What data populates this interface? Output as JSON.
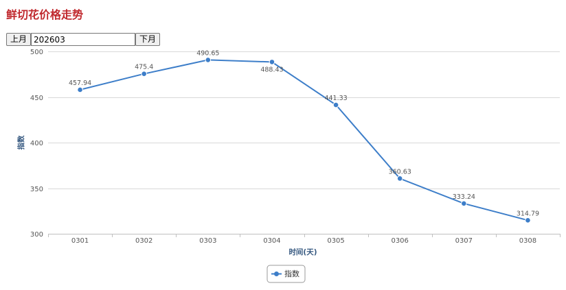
{
  "page": {
    "title": "鲜切花价格走势"
  },
  "month_nav": {
    "prev_label": "上月",
    "month_value": "202603",
    "next_label": "下月"
  },
  "colors": {
    "title": "#c0282d",
    "series": "#3d7ec9",
    "grid": "#d8d8d8",
    "axis_title": "#34577f"
  },
  "chart_data": {
    "type": "line",
    "categories": [
      "0301",
      "0302",
      "0303",
      "0304",
      "0305",
      "0306",
      "0307",
      "0308"
    ],
    "series": [
      {
        "name": "指数",
        "values": [
          457.94,
          475.4,
          490.65,
          488.43,
          441.33,
          360.63,
          333.24,
          314.79
        ],
        "data_labels": [
          "457.94",
          "475.4",
          "490.65",
          "488.43",
          "441.33",
          "360.63",
          "333.24",
          "314.79"
        ]
      }
    ],
    "xlabel": "时间(天)",
    "ylabel": "指数",
    "ylim": [
      300,
      500
    ],
    "yticks": [
      300,
      350,
      400,
      450,
      500
    ],
    "grid": true,
    "legend": "bottom-center",
    "markers": "circle"
  }
}
